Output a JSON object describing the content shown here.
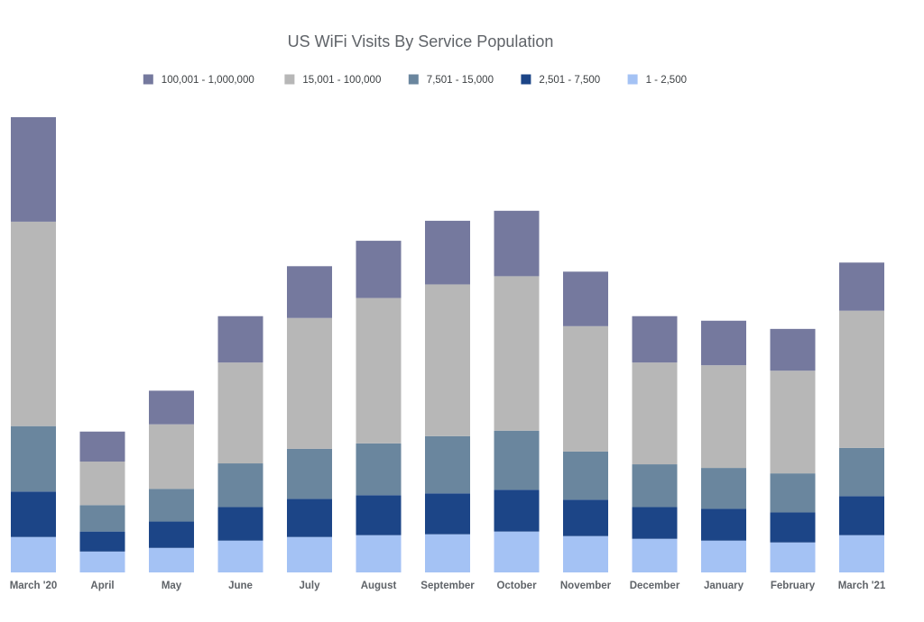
{
  "chart_data": {
    "type": "bar",
    "stacked": true,
    "title": "US WiFi Visits By Service Population",
    "xlabel": "",
    "ylabel": "",
    "ylim": [
      0,
      100
    ],
    "grid": false,
    "legend_position": "top-center",
    "categories": [
      "March '20",
      "April",
      "May",
      "June",
      "July",
      "August",
      "September",
      "October",
      "November",
      "December",
      "January",
      "February",
      "March '21"
    ],
    "series": [
      {
        "name": "1 - 2,500",
        "color": "#a4c2f4",
        "values": [
          7.8,
          4.6,
          5.4,
          7.0,
          7.8,
          8.2,
          8.4,
          9.0,
          8.0,
          7.4,
          7.0,
          6.6,
          8.2
        ]
      },
      {
        "name": "2,501 - 7,500",
        "color": "#1c4587",
        "values": [
          10.0,
          4.4,
          5.8,
          7.4,
          8.4,
          8.8,
          9.0,
          9.2,
          8.0,
          7.0,
          7.0,
          6.6,
          8.6
        ]
      },
      {
        "name": "7,501 - 15,000",
        "color": "#6a869e",
        "values": [
          14.4,
          5.8,
          7.2,
          9.6,
          11.0,
          11.4,
          12.6,
          13.0,
          10.6,
          9.4,
          9.0,
          8.6,
          10.6
        ]
      },
      {
        "name": "15,001 - 100,000",
        "color": "#b7b7b7",
        "values": [
          45.0,
          9.6,
          14.2,
          22.2,
          28.8,
          32.0,
          33.4,
          34.0,
          27.6,
          22.4,
          22.6,
          22.6,
          30.2
        ]
      },
      {
        "name": "100,001 - 1,000,000",
        "color": "#75799e",
        "values": [
          23.0,
          6.6,
          7.4,
          10.2,
          11.4,
          12.6,
          14.0,
          14.4,
          12.0,
          10.2,
          9.8,
          9.2,
          10.6
        ]
      }
    ],
    "legend_order": [
      4,
      3,
      2,
      1,
      0
    ]
  }
}
